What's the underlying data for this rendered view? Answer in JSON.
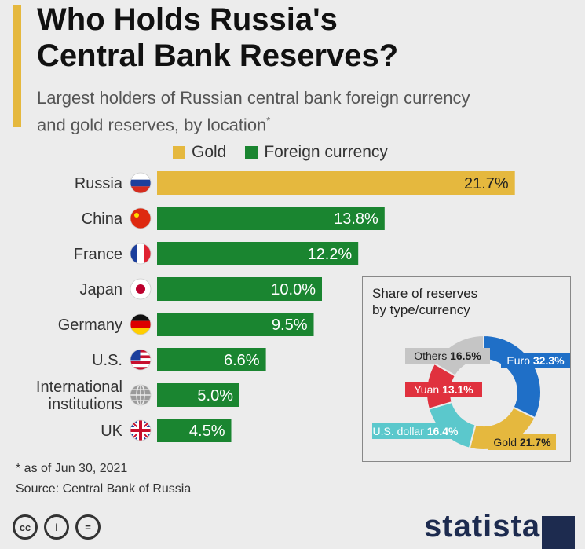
{
  "title_line1": "Who Holds Russia's",
  "title_line2": "Central Bank Reserves?",
  "subtitle_line1": "Largest holders of Russian central bank foreign currency",
  "subtitle_line2": "and gold reserves, by location",
  "subtitle_marker": "*",
  "footnote": "* as of Jun 30, 2021",
  "source": "Source: Central Bank of Russia",
  "logo": "statista",
  "colors": {
    "gold": "#e5b83e",
    "foreign": "#1a8530",
    "text_white": "#ffffff",
    "accent": "#e5b83e"
  },
  "chart_data": [
    {
      "type": "bar",
      "orientation": "horizontal",
      "legend": [
        "Gold",
        "Foreign currency"
      ],
      "categories": [
        "Russia",
        "China",
        "France",
        "Japan",
        "Germany",
        "U.S.",
        "International institutions",
        "UK"
      ],
      "category_lines": [
        [
          "Russia"
        ],
        [
          "China"
        ],
        [
          "France"
        ],
        [
          "Japan"
        ],
        [
          "Germany"
        ],
        [
          "U.S."
        ],
        [
          "International",
          "institutions"
        ],
        [
          "UK"
        ]
      ],
      "flag_icons": [
        "russia-flag-icon",
        "china-flag-icon",
        "france-flag-icon",
        "japan-flag-icon",
        "germany-flag-icon",
        "us-flag-icon",
        "globe-icon",
        "uk-flag-icon"
      ],
      "values": [
        21.7,
        13.8,
        12.2,
        10.0,
        9.5,
        6.6,
        5.0,
        4.5
      ],
      "labels": [
        "21.7%",
        "13.8%",
        "12.2%",
        "10.0%",
        "9.5%",
        "6.6%",
        "5.0%",
        "4.5%"
      ],
      "series_type": [
        "Gold",
        "Foreign currency",
        "Foreign currency",
        "Foreign currency",
        "Foreign currency",
        "Foreign currency",
        "Foreign currency",
        "Foreign currency"
      ],
      "unit": "%"
    },
    {
      "type": "pie",
      "donut": true,
      "title_lines": [
        "Share of reserves",
        "by type/currency"
      ],
      "slices": [
        {
          "name": "Euro",
          "value": 32.3,
          "label": "32.3%",
          "color": "#1f6fc7"
        },
        {
          "name": "Gold",
          "value": 21.7,
          "label": "21.7%",
          "color": "#e5b83e"
        },
        {
          "name": "U.S. dollar",
          "value": 16.4,
          "label": "16.4%",
          "color": "#5bc8cc"
        },
        {
          "name": "Yuan",
          "value": 13.1,
          "label": "13.1%",
          "color": "#e0313e"
        },
        {
          "name": "Others",
          "value": 16.5,
          "label": "16.5%",
          "color": "#c5c5c5"
        }
      ]
    }
  ]
}
